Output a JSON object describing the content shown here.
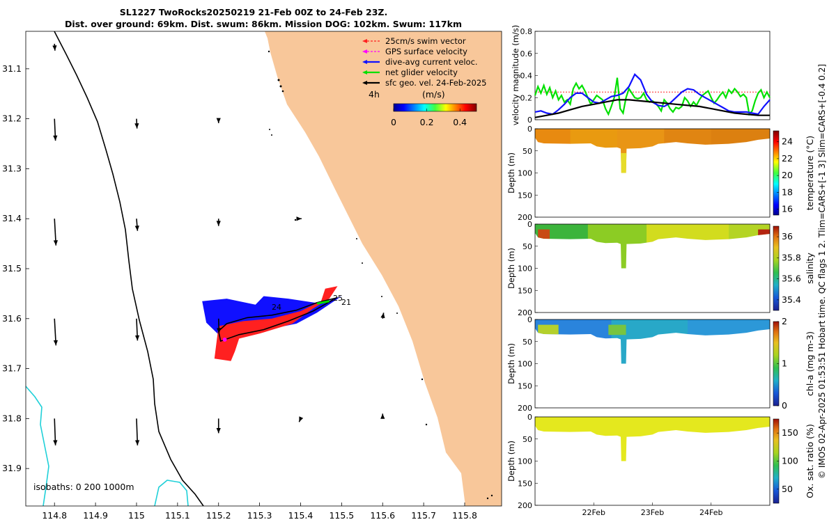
{
  "title": {
    "line1": "SL1227 TwoRocks20250219 21-Feb 00Z to 24-Feb 23Z.",
    "line2": "Dist. over ground: 69km. Dist. swum: 86km. Mission DOG: 102km. Swum: 117km"
  },
  "copyright": "© IMOS 02-Apr-2025 01:53:51 Hobart time. QC flags 1  2. Tlim=CARS+[-1 3] Slim=CARS+[-0.4 0.2]",
  "colors": {
    "land": "#f8c79a",
    "isobath_200": "#000000",
    "isobath_1000": "#1fd0d8",
    "swim": "#ff2020",
    "gps": "#ff00ff",
    "current": "#1010ff",
    "net": "#00e000",
    "geo": "#000000"
  },
  "map": {
    "legend": [
      {
        "label": "25cm/s swim vector",
        "color": "#ff2020",
        "dashed": true
      },
      {
        "label": "GPS surface velocity",
        "color": "#ff00ff",
        "dashed": true
      },
      {
        "label": "dive-avg current veloc.",
        "color": "#1010ff",
        "dashed": false
      },
      {
        "label": "net glider velocity",
        "color": "#00e000",
        "dashed": false
      },
      {
        "label": "sfc geo. vel. 24-Feb-2025",
        "color": "#000000",
        "dashed": false
      }
    ],
    "time_step_label": "4h",
    "speed_unit_label": "(m/s)",
    "speed_ticks": [
      "0",
      "0.2",
      "0.4"
    ],
    "speed_range": [
      0,
      0.5
    ],
    "isobaths_label": "isobaths: 0   200  1000m",
    "track_labels": [
      "24",
      "25",
      "21"
    ],
    "chart_data": {
      "type": "map",
      "xlim": [
        114.73,
        115.89
      ],
      "ylim": [
        31.975,
        31.025
      ],
      "xticks": [
        114.8,
        114.9,
        115,
        115.1,
        115.2,
        115.3,
        115.4,
        115.5,
        115.6,
        115.7,
        115.8
      ],
      "yticks": [
        31.1,
        31.2,
        31.3,
        31.4,
        31.5,
        31.6,
        31.7,
        31.8,
        31.9
      ],
      "xtick_labels": [
        "114.8",
        "114.9",
        "115",
        "115.1",
        "115.2",
        "115.3",
        "115.4",
        "115.5",
        "115.6",
        "115.7",
        "115.8"
      ],
      "ytick_labels": [
        "31.1",
        "31.2",
        "31.3",
        "31.4",
        "31.5",
        "31.6",
        "31.7",
        "31.8",
        "31.9"
      ],
      "geo_vectors": [
        {
          "lon": 114.8,
          "lat": 31.05,
          "u": 0.01,
          "v": -0.14
        },
        {
          "lon": 114.8,
          "lat": 31.2,
          "u": 0.02,
          "v": -0.45
        },
        {
          "lon": 115.0,
          "lat": 31.2,
          "u": 0.01,
          "v": -0.2
        },
        {
          "lon": 115.2,
          "lat": 31.2,
          "u": 0.0,
          "v": -0.09
        },
        {
          "lon": 114.8,
          "lat": 31.4,
          "u": 0.03,
          "v": -0.55
        },
        {
          "lon": 115.0,
          "lat": 31.4,
          "u": 0.02,
          "v": -0.25
        },
        {
          "lon": 115.2,
          "lat": 31.4,
          "u": 0.0,
          "v": -0.15
        },
        {
          "lon": 115.4,
          "lat": 31.4,
          "u": 0.02,
          "v": 0.0
        },
        {
          "lon": 114.8,
          "lat": 31.6,
          "u": 0.03,
          "v": -0.55
        },
        {
          "lon": 115.0,
          "lat": 31.6,
          "u": 0.02,
          "v": -0.45
        },
        {
          "lon": 115.2,
          "lat": 31.6,
          "u": 0.01,
          "v": -0.3
        },
        {
          "lon": 115.6,
          "lat": 31.6,
          "u": 0.02,
          "v": 0.12
        },
        {
          "lon": 114.8,
          "lat": 31.8,
          "u": 0.02,
          "v": -0.55
        },
        {
          "lon": 115.0,
          "lat": 31.8,
          "u": 0.02,
          "v": -0.55
        },
        {
          "lon": 115.2,
          "lat": 31.8,
          "u": 0.0,
          "v": -0.3
        },
        {
          "lon": 115.4,
          "lat": 31.8,
          "u": -0.03,
          "v": -0.07
        },
        {
          "lon": 115.6,
          "lat": 31.8,
          "u": 0.0,
          "v": 0.1
        }
      ],
      "track": [
        [
          115.49,
          31.558
        ],
        [
          115.44,
          31.568
        ],
        [
          115.39,
          31.583
        ],
        [
          115.33,
          31.593
        ],
        [
          115.27,
          31.598
        ],
        [
          115.22,
          31.61
        ],
        [
          115.2,
          31.625
        ],
        [
          115.205,
          31.645
        ],
        [
          115.25,
          31.632
        ],
        [
          115.31,
          31.622
        ],
        [
          115.37,
          31.605
        ],
        [
          115.43,
          31.585
        ],
        [
          115.48,
          31.562
        ]
      ],
      "current_envelope": [
        [
          115.16,
          31.565
        ],
        [
          115.22,
          31.56
        ],
        [
          115.29,
          31.572
        ],
        [
          115.31,
          31.555
        ],
        [
          115.37,
          31.56
        ],
        [
          115.45,
          31.57
        ],
        [
          115.5,
          31.555
        ],
        [
          115.44,
          31.588
        ],
        [
          115.39,
          31.61
        ],
        [
          115.33,
          31.62
        ],
        [
          115.26,
          31.628
        ],
        [
          115.21,
          31.64
        ],
        [
          115.17,
          31.608
        ]
      ],
      "swim_envelope": [
        [
          115.2,
          31.615
        ],
        [
          115.26,
          31.605
        ],
        [
          115.33,
          31.6
        ],
        [
          115.4,
          31.585
        ],
        [
          115.45,
          31.565
        ],
        [
          115.46,
          31.54
        ],
        [
          115.49,
          31.535
        ],
        [
          115.47,
          31.56
        ],
        [
          115.43,
          31.58
        ],
        [
          115.38,
          31.61
        ],
        [
          115.3,
          31.63
        ],
        [
          115.25,
          31.64
        ],
        [
          115.24,
          31.665
        ],
        [
          115.23,
          31.685
        ],
        [
          115.19,
          31.68
        ]
      ]
    }
  },
  "velocity_panel": {
    "chart_data": {
      "type": "line",
      "ylabel": "velocity magnitude (m/s)",
      "xlim": [
        0,
        4
      ],
      "ylim": [
        0,
        0.8
      ],
      "yticks": [
        0,
        0.2,
        0.4,
        0.6,
        0.8
      ],
      "ytick_labels": [
        "0",
        "0.2",
        "0.4",
        "0.6",
        "0.8"
      ],
      "series": [
        {
          "name": "25cm/s swim vector",
          "color": "#ff2020",
          "dashed": true,
          "x": [
            0,
            4
          ],
          "y": [
            0.25,
            0.25
          ]
        },
        {
          "name": "net glider velocity",
          "color": "#00e000",
          "dashed": false,
          "x": [
            0,
            0.05,
            0.1,
            0.15,
            0.2,
            0.25,
            0.3,
            0.35,
            0.4,
            0.45,
            0.5,
            0.55,
            0.6,
            0.65,
            0.7,
            0.75,
            0.8,
            0.85,
            0.9,
            0.95,
            1.0,
            1.05,
            1.1,
            1.15,
            1.2,
            1.25,
            1.3,
            1.35,
            1.4,
            1.45,
            1.5,
            1.55,
            1.6,
            1.65,
            1.7,
            1.75,
            1.8,
            1.85,
            1.9,
            1.95,
            2.0,
            2.05,
            2.1,
            2.15,
            2.2,
            2.25,
            2.3,
            2.35,
            2.4,
            2.45,
            2.5,
            2.55,
            2.6,
            2.65,
            2.7,
            2.75,
            2.8,
            2.85,
            2.9,
            2.95,
            3.0,
            3.05,
            3.1,
            3.15,
            3.2,
            3.25,
            3.3,
            3.35,
            3.4,
            3.45,
            3.5,
            3.55,
            3.6,
            3.65,
            3.7,
            3.75,
            3.8,
            3.85,
            3.9,
            3.95,
            4.0
          ],
          "y": [
            0.22,
            0.3,
            0.24,
            0.31,
            0.23,
            0.29,
            0.2,
            0.26,
            0.18,
            0.22,
            0.16,
            0.18,
            0.14,
            0.28,
            0.33,
            0.28,
            0.31,
            0.26,
            0.2,
            0.14,
            0.18,
            0.22,
            0.2,
            0.18,
            0.1,
            0.05,
            0.12,
            0.2,
            0.38,
            0.1,
            0.06,
            0.2,
            0.28,
            0.24,
            0.2,
            0.19,
            0.2,
            0.24,
            0.18,
            0.16,
            0.17,
            0.15,
            0.12,
            0.08,
            0.18,
            0.15,
            0.1,
            0.07,
            0.11,
            0.1,
            0.12,
            0.2,
            0.17,
            0.12,
            0.16,
            0.13,
            0.18,
            0.22,
            0.24,
            0.26,
            0.2,
            0.15,
            0.18,
            0.22,
            0.25,
            0.2,
            0.27,
            0.24,
            0.28,
            0.25,
            0.21,
            0.23,
            0.2,
            0.05,
            0.08,
            0.17,
            0.24,
            0.27,
            0.2,
            0.25,
            0.2
          ]
        },
        {
          "name": "dive-avg current veloc.",
          "color": "#1010ff",
          "dashed": false,
          "x": [
            0,
            0.1,
            0.2,
            0.3,
            0.4,
            0.5,
            0.6,
            0.7,
            0.8,
            0.9,
            1.0,
            1.1,
            1.2,
            1.3,
            1.4,
            1.5,
            1.6,
            1.7,
            1.8,
            1.9,
            2.0,
            2.1,
            2.2,
            2.3,
            2.4,
            2.5,
            2.6,
            2.7,
            2.8,
            2.9,
            3.0,
            3.1,
            3.2,
            3.3,
            3.4,
            3.5,
            3.6,
            3.7,
            3.8,
            3.9,
            4.0
          ],
          "y": [
            0.07,
            0.08,
            0.06,
            0.05,
            0.09,
            0.14,
            0.2,
            0.24,
            0.24,
            0.2,
            0.16,
            0.15,
            0.18,
            0.21,
            0.22,
            0.24,
            0.3,
            0.41,
            0.36,
            0.23,
            0.16,
            0.13,
            0.12,
            0.15,
            0.2,
            0.25,
            0.28,
            0.27,
            0.23,
            0.2,
            0.17,
            0.14,
            0.11,
            0.08,
            0.07,
            0.07,
            0.07,
            0.06,
            0.05,
            0.12,
            0.18
          ]
        },
        {
          "name": "sfc geo. vel.",
          "color": "#000000",
          "dashed": false,
          "x": [
            0,
            0.2,
            0.4,
            0.6,
            0.8,
            1.0,
            1.2,
            1.4,
            1.6,
            1.8,
            2.0,
            2.2,
            2.4,
            2.6,
            2.8,
            3.0,
            3.2,
            3.4,
            3.6,
            3.8,
            4.0
          ],
          "y": [
            0.02,
            0.04,
            0.06,
            0.09,
            0.12,
            0.14,
            0.16,
            0.18,
            0.18,
            0.17,
            0.16,
            0.15,
            0.14,
            0.13,
            0.12,
            0.1,
            0.08,
            0.06,
            0.05,
            0.04,
            0.04
          ]
        }
      ]
    }
  },
  "section_panels": [
    {
      "name": "temperature",
      "ylabel": "Depth (m)",
      "cblabel": "temperature (°C)",
      "cbticks": [
        "16",
        "18",
        "20",
        "22",
        "24"
      ],
      "cbvalues": [
        16,
        18,
        20,
        22,
        24
      ],
      "cbrange": [
        15.3,
        25.3
      ],
      "yticks": [
        "0",
        "50",
        "100",
        "150",
        "200"
      ],
      "chart_data": {
        "type": "heatmap",
        "xlim": [
          0,
          4
        ],
        "ylim": [
          0,
          200
        ],
        "variable": "temperature",
        "units": "°C",
        "bands": [
          {
            "x0": 0.0,
            "x1": 0.6,
            "value": 22.8,
            "color": "#e88a10"
          },
          {
            "x0": 0.6,
            "x1": 1.4,
            "value": 22.5,
            "color": "#e99a10"
          },
          {
            "x0": 1.4,
            "x1": 2.2,
            "value": 22.6,
            "color": "#e99515"
          },
          {
            "x0": 2.2,
            "x1": 3.0,
            "value": 23.0,
            "color": "#e08512"
          },
          {
            "x0": 3.0,
            "x1": 4.0,
            "value": 23.2,
            "color": "#dc8010"
          }
        ],
        "features": [
          {
            "label": "deep dive",
            "x0": 1.45,
            "x1": 1.6,
            "value": 21.0,
            "color": "#e6dc2a"
          }
        ]
      }
    },
    {
      "name": "salinity",
      "ylabel": "Depth (m)",
      "cblabel": "salinity",
      "cbticks": [
        "35.4",
        "35.6",
        "35.8",
        "36"
      ],
      "cbvalues": [
        35.4,
        35.6,
        35.8,
        36.0
      ],
      "cbrange": [
        35.3,
        36.1
      ],
      "yticks": [
        "0",
        "50",
        "100",
        "150",
        "200"
      ],
      "chart_data": {
        "type": "heatmap",
        "xlim": [
          0,
          4
        ],
        "ylim": [
          0,
          200
        ],
        "variable": "salinity",
        "units": "",
        "bands": [
          {
            "x0": 0.0,
            "x1": 0.9,
            "value": 35.75,
            "color": "#3cb43c"
          },
          {
            "x0": 0.9,
            "x1": 1.9,
            "value": 35.85,
            "color": "#8ccc24"
          },
          {
            "x0": 1.9,
            "x1": 3.3,
            "value": 35.95,
            "color": "#d2dc1e"
          },
          {
            "x0": 3.3,
            "x1": 4.0,
            "value": 35.9,
            "color": "#b4d424"
          }
        ],
        "features": [
          {
            "label": "near-surface high",
            "x0": 3.8,
            "x1": 4.0,
            "value": 36.05,
            "color": "#b42410"
          },
          {
            "label": "shelf high",
            "x0": 0.05,
            "x1": 0.25,
            "value": 36.0,
            "color": "#c84a14"
          }
        ]
      }
    },
    {
      "name": "chl-a",
      "ylabel": "Depth (m)",
      "cblabel": "chl-a (mg m-3)",
      "cbticks": [
        "0",
        "1",
        "2"
      ],
      "cbvalues": [
        0,
        1,
        2
      ],
      "cbrange": [
        0,
        2
      ],
      "yticks": [
        "0",
        "50",
        "100",
        "150",
        "200"
      ],
      "chart_data": {
        "type": "heatmap",
        "xlim": [
          0,
          4
        ],
        "ylim": [
          0,
          200
        ],
        "variable": "chl-a",
        "units": "mg m-3",
        "bands": [
          {
            "x0": 0.0,
            "x1": 1.3,
            "value": 0.45,
            "color": "#2a84dc"
          },
          {
            "x0": 1.3,
            "x1": 2.6,
            "value": 0.6,
            "color": "#28a8c8"
          },
          {
            "x0": 2.6,
            "x1": 4.0,
            "value": 0.5,
            "color": "#2c98d8"
          }
        ],
        "features": [
          {
            "label": "subsurface max",
            "x0": 0.05,
            "x1": 0.4,
            "value": 1.2,
            "color": "#b4d02c"
          },
          {
            "label": "subsurface max",
            "x0": 1.25,
            "x1": 1.55,
            "value": 1.0,
            "color": "#78c440"
          }
        ]
      }
    },
    {
      "name": "oxygen",
      "ylabel": "Depth (m)",
      "cblabel": "Ox. sat. ratio (%)",
      "cbticks": [
        "50",
        "100",
        "150"
      ],
      "cbvalues": [
        50,
        100,
        150
      ],
      "cbrange": [
        25,
        175
      ],
      "yticks": [
        "0",
        "50",
        "100",
        "150",
        "200"
      ],
      "chart_data": {
        "type": "heatmap",
        "xlim": [
          0,
          4
        ],
        "ylim": [
          0,
          200
        ],
        "variable": "oxygen saturation",
        "units": "%",
        "bands": [
          {
            "x0": 0.0,
            "x1": 4.0,
            "value": 112,
            "color": "#e4e81e"
          }
        ],
        "features": []
      }
    }
  ],
  "time_axis": {
    "ticks": [
      "22Feb",
      "23Feb",
      "24Feb"
    ],
    "values": [
      1,
      2,
      3
    ]
  }
}
